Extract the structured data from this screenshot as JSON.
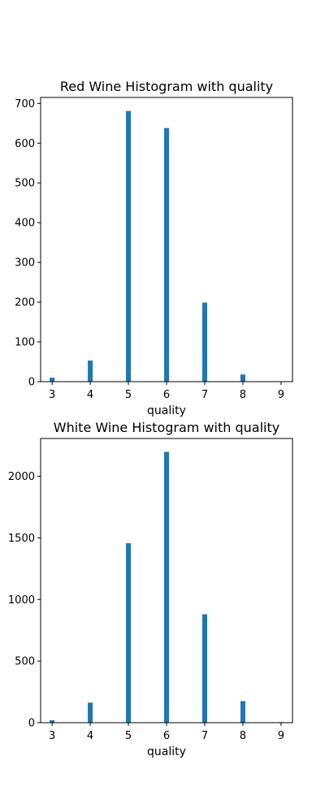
{
  "chart_data": [
    {
      "type": "bar",
      "title": "Red Wine Histogram with quality",
      "xlabel": "quality",
      "ylabel": "",
      "xlim": [
        2.7,
        9.3
      ],
      "ylim": [
        0,
        715
      ],
      "x_ticks": [
        "3",
        "4",
        "5",
        "6",
        "7",
        "8",
        "9"
      ],
      "y_ticks": [
        "0",
        "100",
        "200",
        "300",
        "400",
        "500",
        "600",
        "700"
      ],
      "bar_color": "#1f77b4",
      "categories": [
        3,
        4,
        5,
        6,
        7,
        8
      ],
      "values": [
        10,
        53,
        681,
        638,
        199,
        18
      ]
    },
    {
      "type": "bar",
      "title": "White Wine Histogram with quality",
      "xlabel": "quality",
      "ylabel": "",
      "xlim": [
        2.7,
        9.3
      ],
      "ylim": [
        0,
        2307
      ],
      "x_ticks": [
        "3",
        "4",
        "5",
        "6",
        "7",
        "8",
        "9"
      ],
      "y_ticks": [
        "0",
        "500",
        "1000",
        "1500",
        "2000"
      ],
      "bar_color": "#1f77b4",
      "categories": [
        3,
        4,
        5,
        6,
        7,
        8,
        9
      ],
      "values": [
        20,
        163,
        1457,
        2198,
        880,
        175,
        5
      ]
    }
  ]
}
